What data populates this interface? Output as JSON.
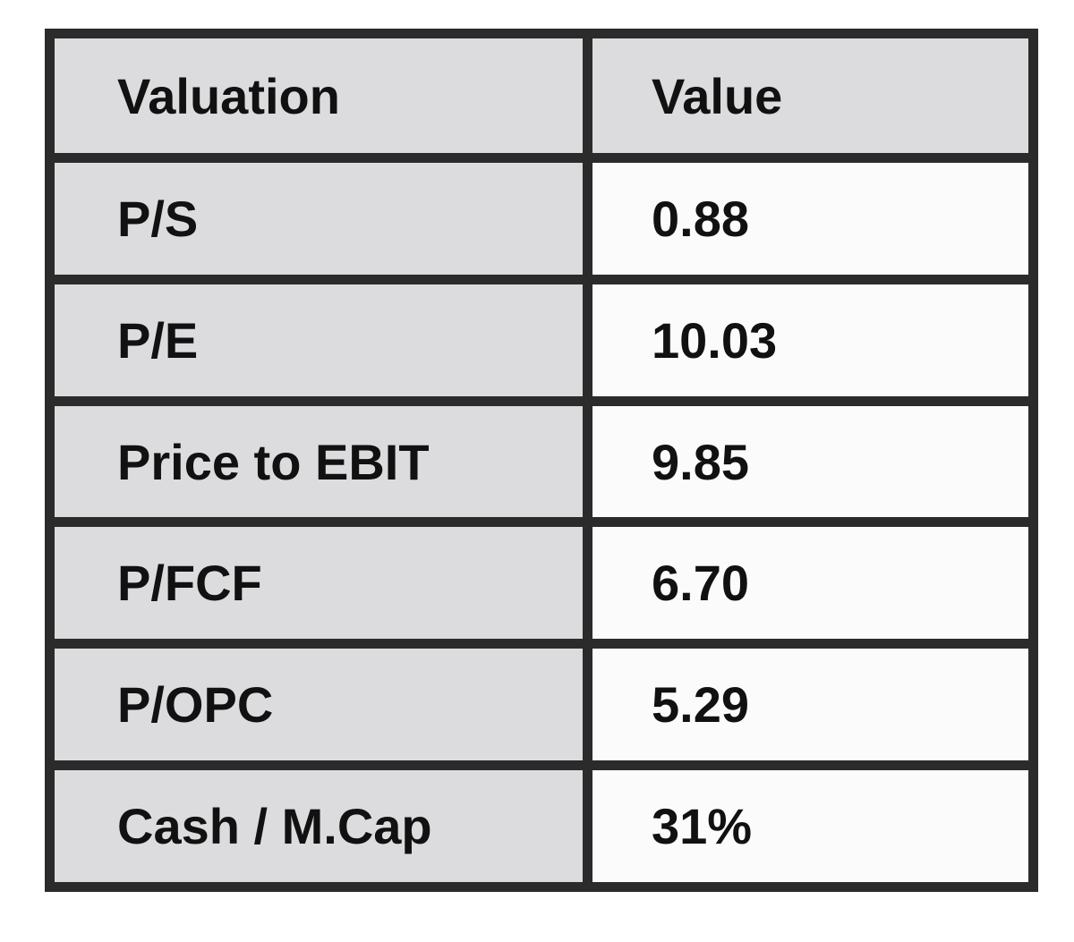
{
  "table": {
    "headers": [
      "Valuation",
      "Value"
    ],
    "rows": [
      [
        "P/S",
        "0.88"
      ],
      [
        "P/E",
        "10.03"
      ],
      [
        "Price to EBIT",
        "9.85"
      ],
      [
        "P/FCF",
        "6.70"
      ],
      [
        "P/OPC",
        "5.29"
      ],
      [
        "Cash / M.Cap",
        "31%"
      ]
    ]
  }
}
